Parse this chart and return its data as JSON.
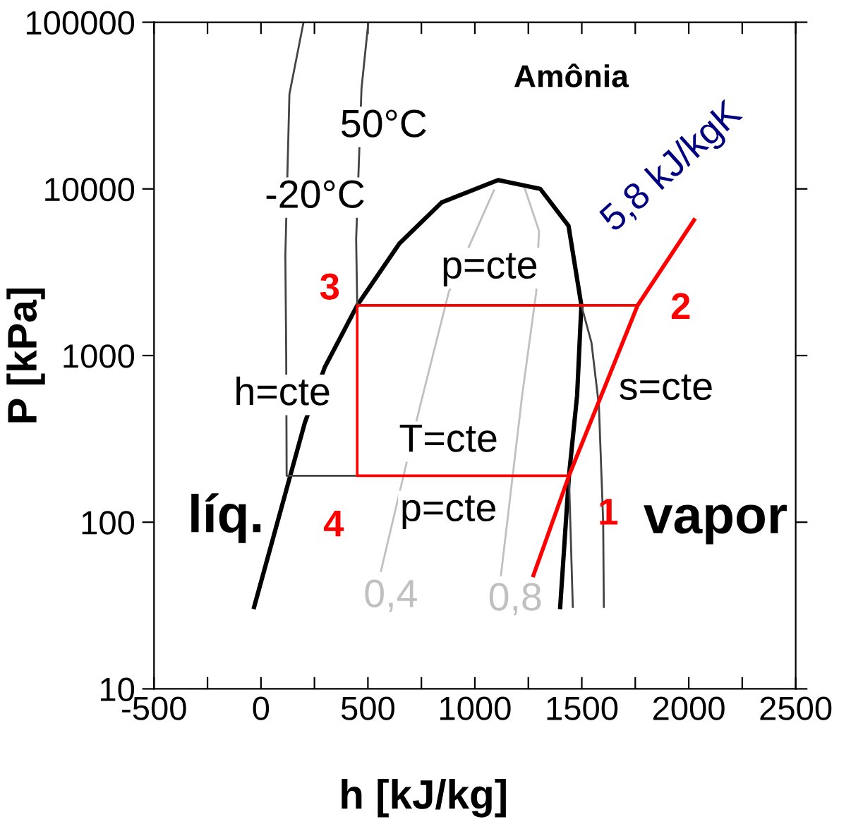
{
  "chart_data": {
    "type": "line",
    "title": "Amônia",
    "xlabel": "h [kJ/kg]",
    "ylabel": "P [kPa]",
    "log": "y",
    "grid": false,
    "marker": "none",
    "xlim": [
      -500,
      2500
    ],
    "ylim": [
      10,
      100000
    ],
    "xticks": [
      -500,
      {
        "value": -250,
        "label": null
      },
      0,
      {
        "value": 250,
        "label": null
      },
      500,
      {
        "value": 750,
        "label": null
      },
      1000,
      {
        "value": 1250,
        "label": null
      },
      1500,
      {
        "value": 1750,
        "label": null
      },
      2000,
      {
        "value": 2250,
        "label": null
      },
      2500
    ],
    "yticks": [
      10,
      100,
      1000,
      10000,
      100000
    ],
    "series": [
      {
        "color": "#000000",
        "x": [
          -32,
          205,
          298,
          450,
          647,
          845,
          1109,
          1306,
          1438,
          1498,
          1478,
          1440,
          1399
        ],
        "values": [
          31,
          395,
          850,
          2000,
          4700,
          8300,
          11300,
          10000,
          6000,
          2000,
          575,
          190,
          31
        ]
      },
      {
        "color": "#444444",
        "x": [
          199,
          133,
          114,
          118,
          120,
          1440,
          1458
        ],
        "values": [
          100000,
          37000,
          4000,
          1000,
          190,
          190,
          31
        ]
      },
      {
        "color": "#444444",
        "x": [
          502,
          470,
          445,
          450,
          1498,
          1545,
          1580,
          1600,
          1603
        ],
        "values": [
          100000,
          40000,
          5000,
          2000,
          2000,
          1200,
          500,
          100,
          31
        ]
      },
      {
        "color": "#c0c0c0",
        "x": [
          561,
          739,
          878,
          1089
        ],
        "values": [
          51,
          470,
          2400,
          9800
        ]
      },
      {
        "color": "#c0c0c0",
        "x": [
          1122,
          1221,
          1287,
          1300,
          1234
        ],
        "values": [
          48,
          575,
          2400,
          5600,
          10000
        ]
      },
      {
        "color": "#ff0000",
        "x": [
          1274,
          1440,
          1761,
          2025
        ],
        "values": [
          48,
          190,
          2000,
          6500
        ]
      },
      {
        "color": "#ff0000",
        "x": [
          1761,
          450,
          450,
          1440
        ],
        "values": [
          2000,
          2000,
          190,
          190
        ]
      }
    ],
    "annotations": [
      "50°C",
      "-20°C",
      "5,8 kJ/kgK",
      "p=cte",
      "h=cte",
      "s=cte",
      "T=cte",
      "p=cte",
      "líq.",
      "vapor",
      "0,4",
      "0,8",
      {
        "text": "1",
        "x": 1440,
        "y": 190
      },
      {
        "text": "2",
        "x": 1761,
        "y": 2000
      },
      {
        "text": "3",
        "x": 450,
        "y": 2000
      },
      {
        "text": "4",
        "x": 450,
        "y": 190
      }
    ]
  }
}
